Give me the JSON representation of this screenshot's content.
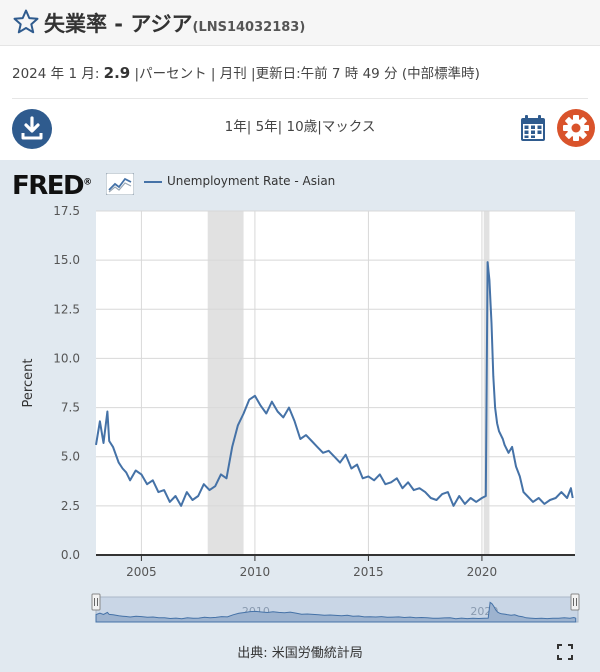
{
  "header": {
    "title": "失業率 - アジア",
    "series_id": "(LNS14032183)"
  },
  "meta": {
    "date_label": "2024 年 1 月:",
    "value": "2.9",
    "details": "|パーセント | 月刊 |更新日:午前 7 時 49 分 (中部標準時)"
  },
  "toolbar": {
    "range_1y": "1年",
    "range_5y": "5年",
    "range_10y": "10歳",
    "range_max": "マックス",
    "sep": "|"
  },
  "brand": {
    "logo": "FRED",
    "registered": "®"
  },
  "source": "出典: 米国労働統計局",
  "colors": {
    "line": "#4572a7",
    "panel": "#e1e9f0",
    "recession": "#e1e1e1",
    "accent": "#2f5b8e",
    "gear": "#d9532b"
  },
  "icons": {
    "star": "star-icon",
    "download": "download-icon",
    "calendar": "calendar-icon",
    "gear": "gear-icon",
    "fullscreen": "fullscreen-icon"
  },
  "chart_data": {
    "type": "line",
    "title": "",
    "xlabel": "",
    "ylabel": "Percent",
    "xlim": [
      2003.0,
      2024.1
    ],
    "ylim": [
      0,
      17.5
    ],
    "yticks": [
      0.0,
      2.5,
      5.0,
      7.5,
      10.0,
      12.5,
      15.0,
      17.5
    ],
    "ytick_labels": [
      "0.0",
      "2.5",
      "5.0",
      "7.5",
      "10.0",
      "12.5",
      "15.0",
      "17.5"
    ],
    "xticks": [
      2005,
      2010,
      2015,
      2020
    ],
    "xtick_labels": [
      "2005",
      "2010",
      "2015",
      "2020"
    ],
    "grid": true,
    "legend_position": "top-left",
    "recessions": [
      [
        2007.92,
        2009.5
      ],
      [
        2020.08,
        2020.33
      ]
    ],
    "navigator_labels": [
      "2010",
      "2020"
    ],
    "series": [
      {
        "name": "Unemployment Rate - Asian",
        "x": [
          2003.0,
          2003.17,
          2003.33,
          2003.5,
          2003.58,
          2003.75,
          2004.0,
          2004.17,
          2004.33,
          2004.5,
          2004.75,
          2005.0,
          2005.25,
          2005.5,
          2005.75,
          2006.0,
          2006.25,
          2006.5,
          2006.75,
          2007.0,
          2007.25,
          2007.5,
          2007.75,
          2008.0,
          2008.25,
          2008.5,
          2008.75,
          2009.0,
          2009.25,
          2009.5,
          2009.75,
          2010.0,
          2010.25,
          2010.5,
          2010.75,
          2011.0,
          2011.25,
          2011.5,
          2011.75,
          2012.0,
          2012.25,
          2012.5,
          2012.75,
          2013.0,
          2013.25,
          2013.5,
          2013.75,
          2014.0,
          2014.25,
          2014.5,
          2014.75,
          2015.0,
          2015.25,
          2015.5,
          2015.75,
          2016.0,
          2016.25,
          2016.5,
          2016.75,
          2017.0,
          2017.25,
          2017.5,
          2017.75,
          2018.0,
          2018.25,
          2018.5,
          2018.75,
          2019.0,
          2019.25,
          2019.5,
          2019.75,
          2020.0,
          2020.17,
          2020.25,
          2020.33,
          2020.42,
          2020.5,
          2020.58,
          2020.67,
          2020.75,
          2020.92,
          2021.0,
          2021.17,
          2021.33,
          2021.5,
          2021.67,
          2021.83,
          2022.0,
          2022.25,
          2022.5,
          2022.75,
          2023.0,
          2023.25,
          2023.5,
          2023.75,
          2023.92,
          2024.0
        ],
        "values": [
          5.6,
          6.8,
          5.7,
          7.3,
          5.8,
          5.5,
          4.7,
          4.4,
          4.2,
          3.8,
          4.3,
          4.1,
          3.6,
          3.8,
          3.2,
          3.3,
          2.7,
          3.0,
          2.5,
          3.2,
          2.8,
          3.0,
          3.6,
          3.3,
          3.5,
          4.1,
          3.9,
          5.5,
          6.6,
          7.2,
          7.9,
          8.1,
          7.6,
          7.2,
          7.8,
          7.3,
          7.0,
          7.5,
          6.8,
          5.9,
          6.1,
          5.8,
          5.5,
          5.2,
          5.3,
          5.0,
          4.7,
          5.1,
          4.4,
          4.6,
          3.9,
          4.0,
          3.8,
          4.1,
          3.6,
          3.7,
          3.9,
          3.4,
          3.7,
          3.3,
          3.4,
          3.2,
          2.9,
          2.8,
          3.1,
          3.2,
          2.5,
          3.0,
          2.6,
          2.9,
          2.7,
          2.9,
          3.0,
          14.9,
          14.0,
          11.8,
          9.1,
          7.5,
          6.7,
          6.3,
          5.9,
          5.6,
          5.2,
          5.5,
          4.5,
          4.0,
          3.2,
          3.0,
          2.7,
          2.9,
          2.6,
          2.8,
          2.9,
          3.2,
          2.9,
          3.4,
          2.9
        ]
      }
    ]
  }
}
